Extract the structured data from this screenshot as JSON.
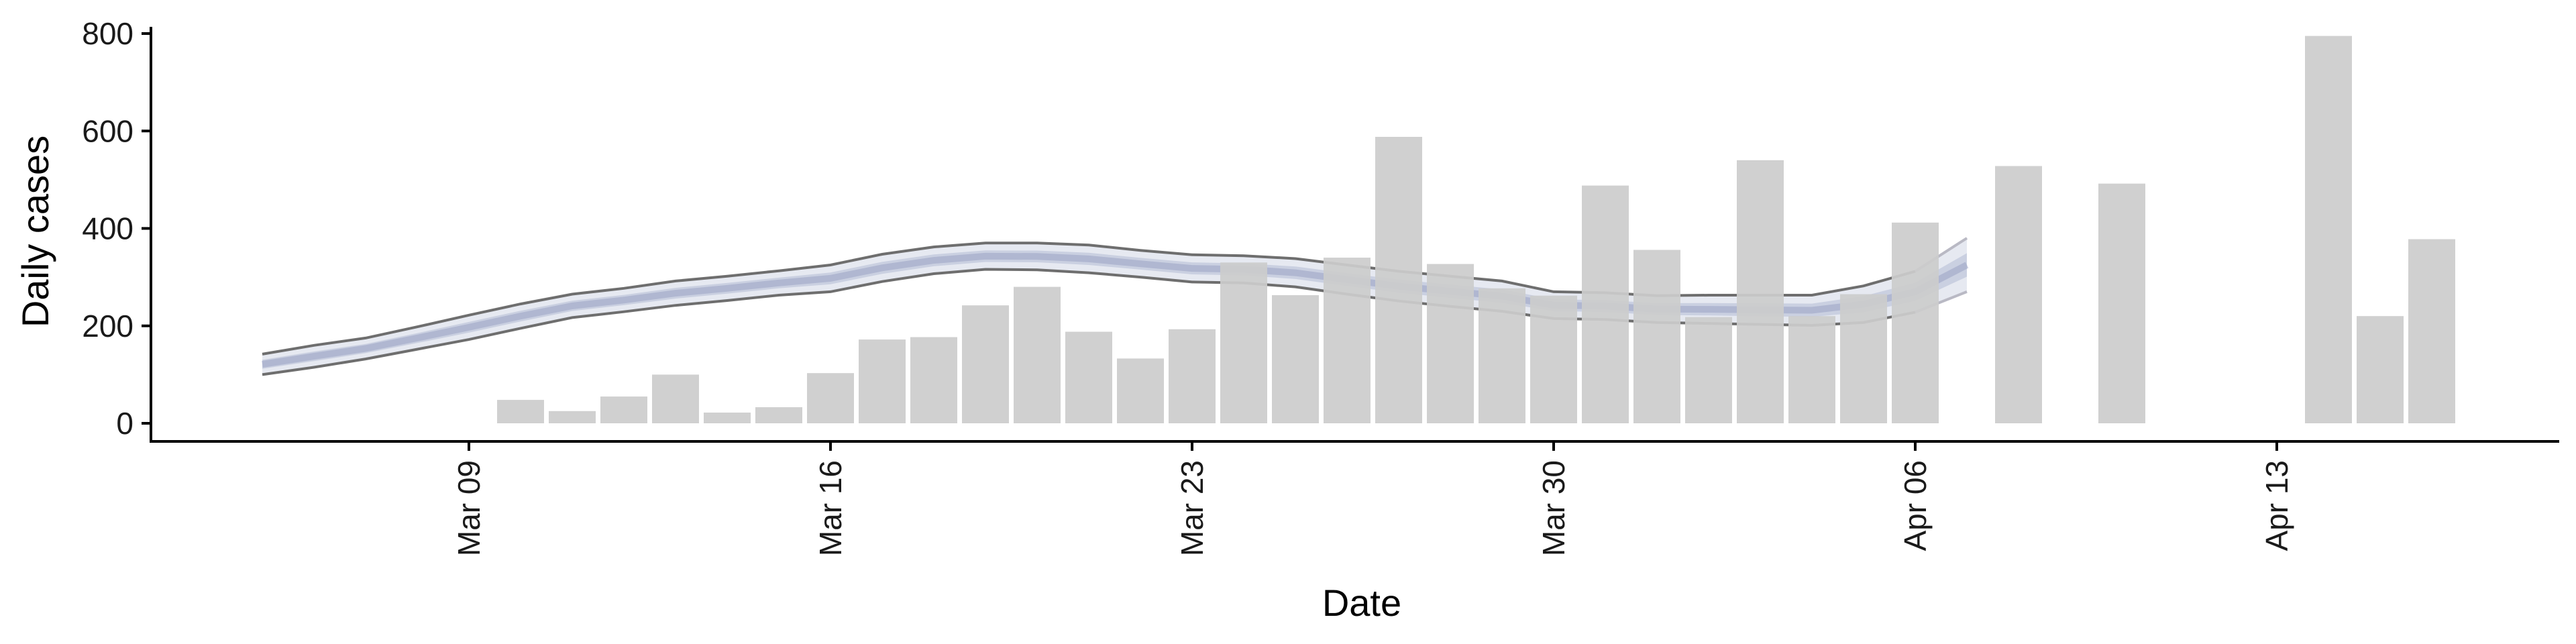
{
  "chart_data": {
    "type": "bar",
    "title": "",
    "xlabel": "Date",
    "ylabel": "Daily cases",
    "ylim": [
      0,
      800
    ],
    "xlim": [
      "2020-03-04",
      "2020-04-18"
    ],
    "yticks": [
      0,
      200,
      400,
      600,
      800
    ],
    "xticks": [
      {
        "date": "2020-03-09",
        "label": "Mar 09"
      },
      {
        "date": "2020-03-16",
        "label": "Mar 16"
      },
      {
        "date": "2020-03-23",
        "label": "Mar 23"
      },
      {
        "date": "2020-03-30",
        "label": "Mar 30"
      },
      {
        "date": "2020-04-06",
        "label": "Apr 06"
      },
      {
        "date": "2020-04-13",
        "label": "Apr 13"
      }
    ],
    "grid": false,
    "legend": "none",
    "colors": {
      "bars": "#cccccc",
      "band": "#b8bfd8",
      "band_inner": "#a9b2cf",
      "band_lines": "#6e6e6e",
      "axis": "#000000"
    },
    "bars": [
      {
        "date": "2020-03-10",
        "value": 48
      },
      {
        "date": "2020-03-11",
        "value": 25
      },
      {
        "date": "2020-03-12",
        "value": 55
      },
      {
        "date": "2020-03-13",
        "value": 100
      },
      {
        "date": "2020-03-14",
        "value": 22
      },
      {
        "date": "2020-03-15",
        "value": 33
      },
      {
        "date": "2020-03-16",
        "value": 103
      },
      {
        "date": "2020-03-17",
        "value": 172
      },
      {
        "date": "2020-03-18",
        "value": 177
      },
      {
        "date": "2020-03-19",
        "value": 242
      },
      {
        "date": "2020-03-20",
        "value": 280
      },
      {
        "date": "2020-03-21",
        "value": 188
      },
      {
        "date": "2020-03-22",
        "value": 133
      },
      {
        "date": "2020-03-23",
        "value": 193
      },
      {
        "date": "2020-03-24",
        "value": 330
      },
      {
        "date": "2020-03-25",
        "value": 263
      },
      {
        "date": "2020-03-26",
        "value": 340
      },
      {
        "date": "2020-03-27",
        "value": 588
      },
      {
        "date": "2020-03-28",
        "value": 327
      },
      {
        "date": "2020-03-29",
        "value": 277
      },
      {
        "date": "2020-03-30",
        "value": 262
      },
      {
        "date": "2020-03-31",
        "value": 488
      },
      {
        "date": "2020-04-01",
        "value": 356
      },
      {
        "date": "2020-04-02",
        "value": 218
      },
      {
        "date": "2020-04-03",
        "value": 540
      },
      {
        "date": "2020-04-04",
        "value": 220
      },
      {
        "date": "2020-04-05",
        "value": 265
      },
      {
        "date": "2020-04-06",
        "value": 412
      },
      {
        "date": "2020-04-08",
        "value": 528
      },
      {
        "date": "2020-04-10",
        "value": 492
      },
      {
        "date": "2020-04-14",
        "value": 795
      },
      {
        "date": "2020-04-15",
        "value": 220
      },
      {
        "date": "2020-04-16",
        "value": 378
      }
    ],
    "band": [
      {
        "date": "2020-03-05",
        "lower": 100,
        "upper": 142
      },
      {
        "date": "2020-03-06",
        "lower": 115,
        "upper": 160
      },
      {
        "date": "2020-03-07",
        "lower": 132,
        "upper": 175
      },
      {
        "date": "2020-03-08",
        "lower": 152,
        "upper": 198
      },
      {
        "date": "2020-03-09",
        "lower": 172,
        "upper": 222
      },
      {
        "date": "2020-03-10",
        "lower": 195,
        "upper": 245
      },
      {
        "date": "2020-03-11",
        "lower": 217,
        "upper": 265
      },
      {
        "date": "2020-03-12",
        "lower": 229,
        "upper": 277
      },
      {
        "date": "2020-03-13",
        "lower": 242,
        "upper": 292
      },
      {
        "date": "2020-03-14",
        "lower": 252,
        "upper": 302
      },
      {
        "date": "2020-03-15",
        "lower": 263,
        "upper": 313
      },
      {
        "date": "2020-03-16",
        "lower": 270,
        "upper": 325
      },
      {
        "date": "2020-03-17",
        "lower": 291,
        "upper": 347
      },
      {
        "date": "2020-03-18",
        "lower": 307,
        "upper": 362
      },
      {
        "date": "2020-03-19",
        "lower": 316,
        "upper": 370
      },
      {
        "date": "2020-03-20",
        "lower": 315,
        "upper": 370
      },
      {
        "date": "2020-03-21",
        "lower": 309,
        "upper": 366
      },
      {
        "date": "2020-03-22",
        "lower": 300,
        "upper": 355
      },
      {
        "date": "2020-03-23",
        "lower": 290,
        "upper": 346
      },
      {
        "date": "2020-03-24",
        "lower": 288,
        "upper": 344
      },
      {
        "date": "2020-03-25",
        "lower": 280,
        "upper": 338
      },
      {
        "date": "2020-03-26",
        "lower": 265,
        "upper": 325
      },
      {
        "date": "2020-03-27",
        "lower": 251,
        "upper": 312
      },
      {
        "date": "2020-03-28",
        "lower": 240,
        "upper": 302
      },
      {
        "date": "2020-03-29",
        "lower": 230,
        "upper": 292
      },
      {
        "date": "2020-03-30",
        "lower": 215,
        "upper": 270
      },
      {
        "date": "2020-03-31",
        "lower": 213,
        "upper": 268
      },
      {
        "date": "2020-04-01",
        "lower": 207,
        "upper": 262
      },
      {
        "date": "2020-04-02",
        "lower": 205,
        "upper": 263
      },
      {
        "date": "2020-04-03",
        "lower": 203,
        "upper": 263
      },
      {
        "date": "2020-04-04",
        "lower": 201,
        "upper": 263
      },
      {
        "date": "2020-04-05",
        "lower": 207,
        "upper": 282
      },
      {
        "date": "2020-04-06",
        "lower": 228,
        "upper": 312
      },
      {
        "date": "2020-04-07",
        "lower": 270,
        "upper": 380
      }
    ]
  }
}
